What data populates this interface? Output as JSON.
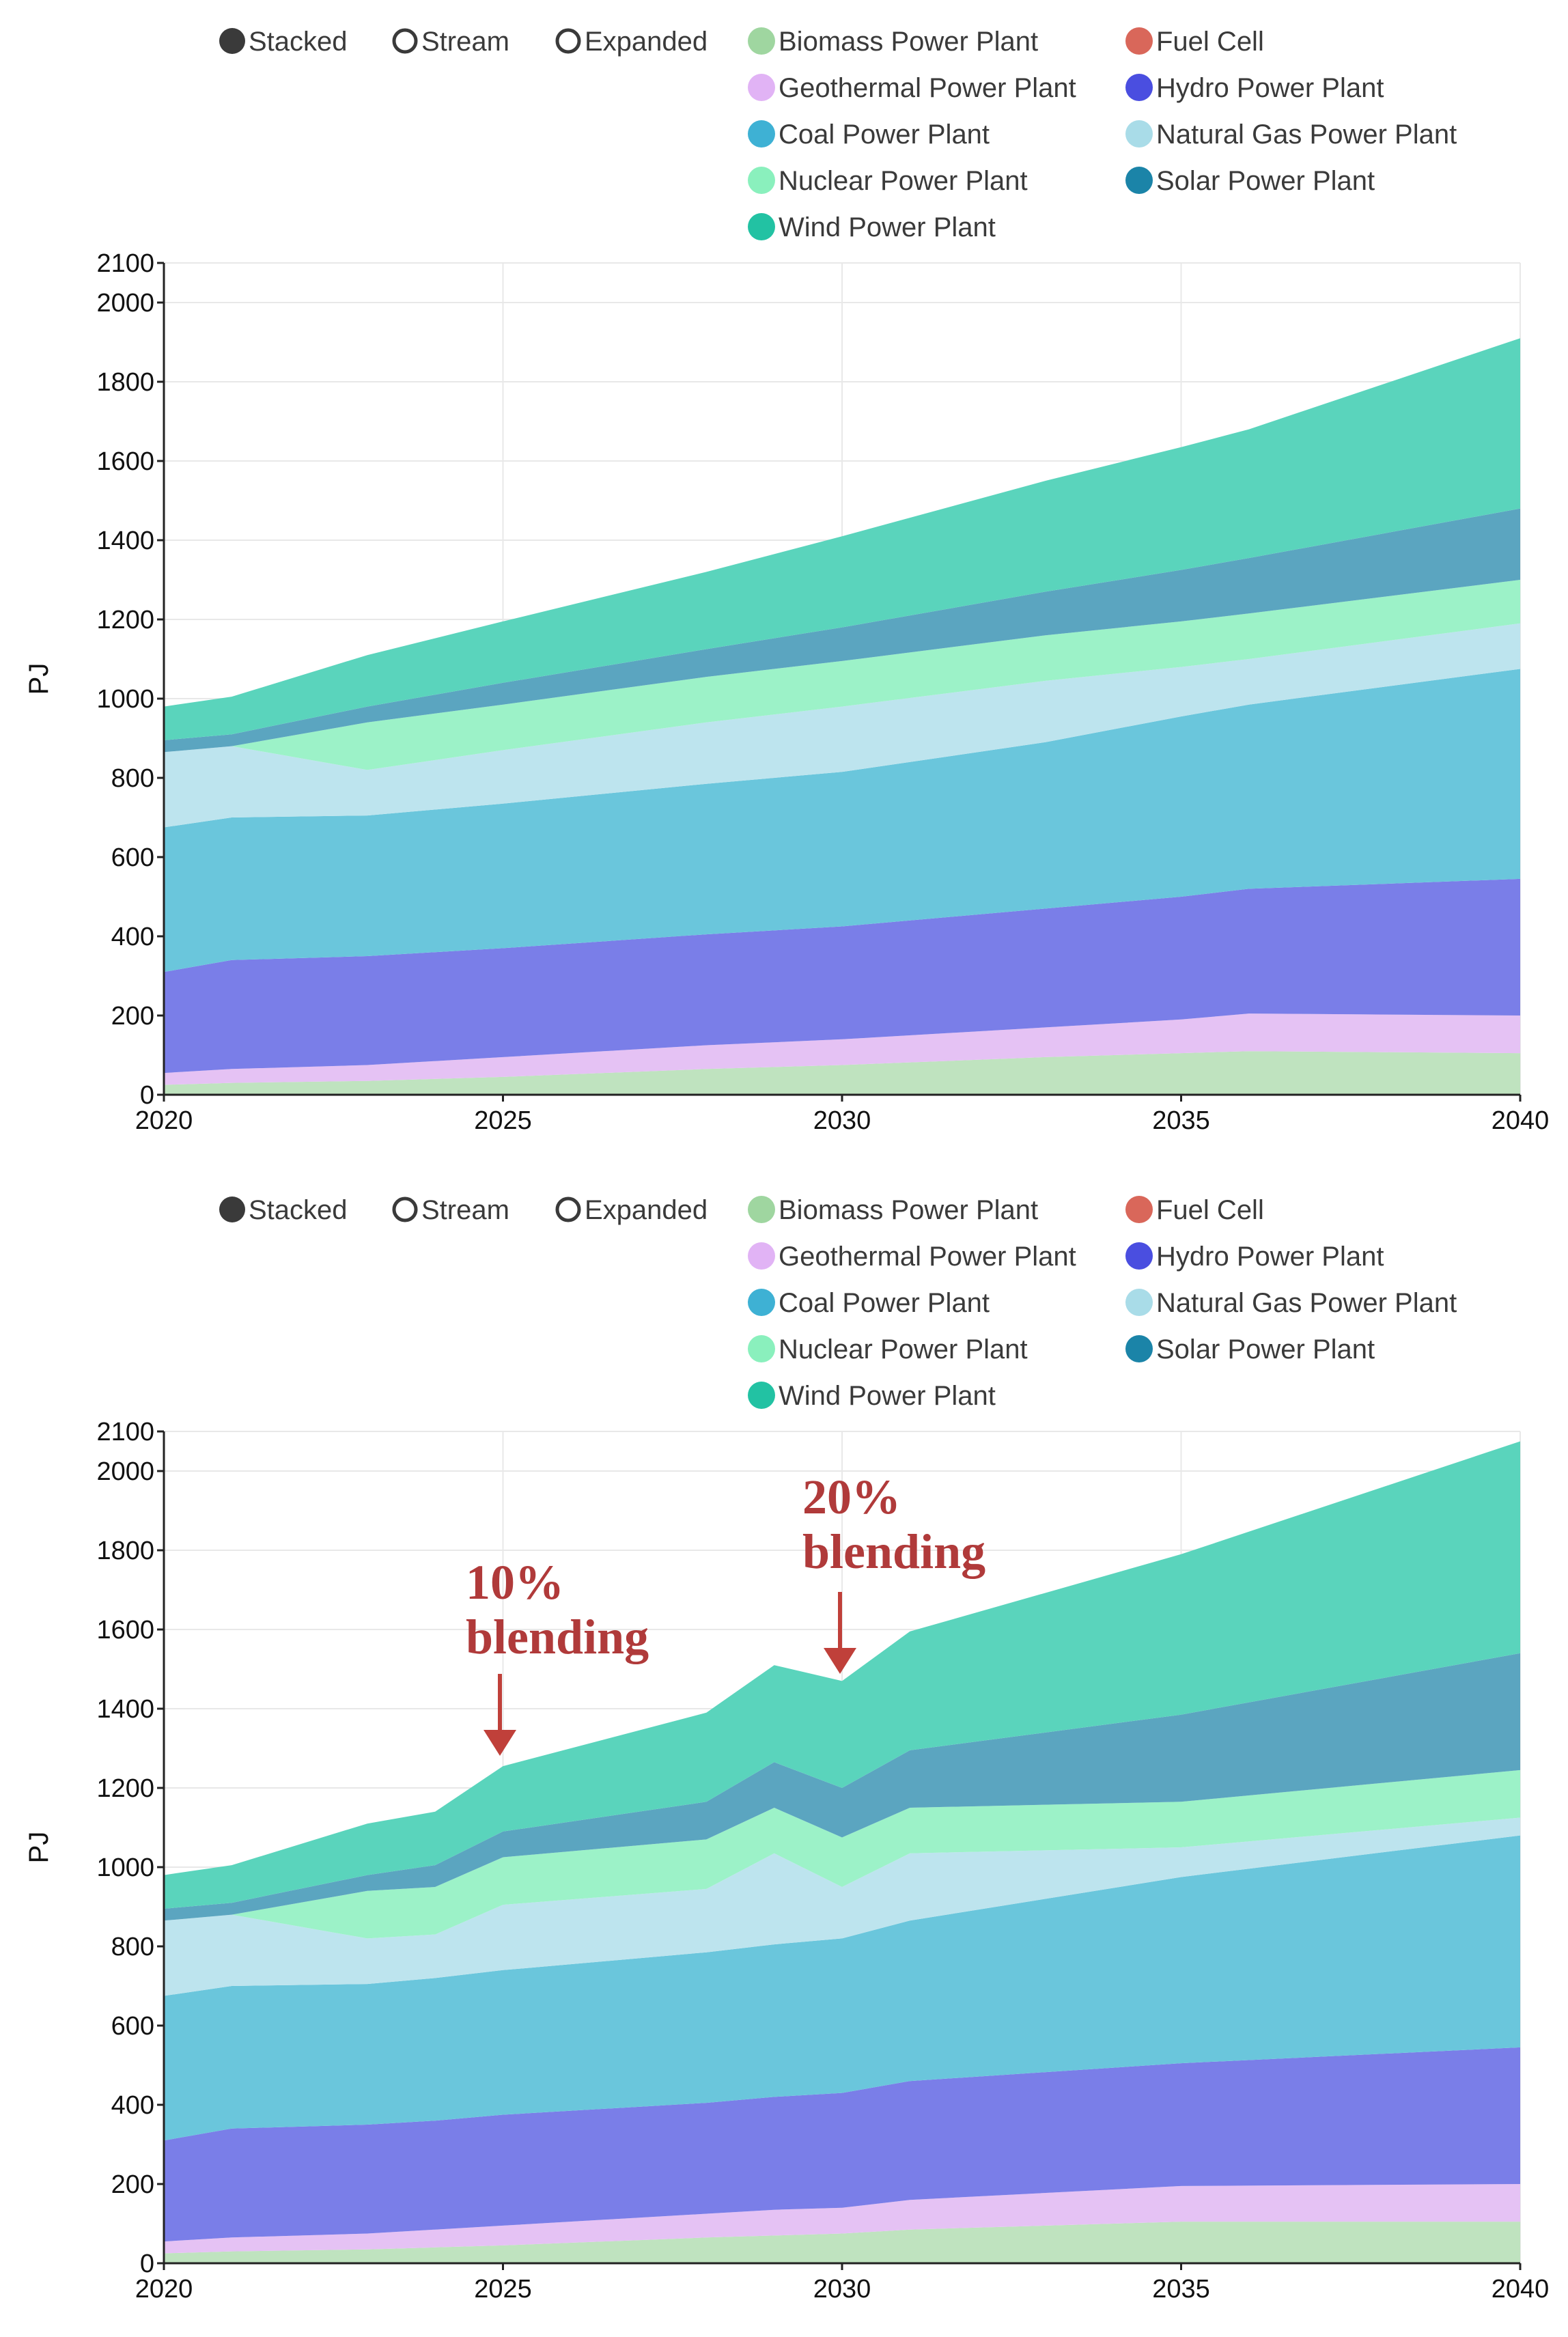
{
  "legend": {
    "modes": [
      {
        "label": "Stacked",
        "selected": true
      },
      {
        "label": "Stream",
        "selected": false
      },
      {
        "label": "Expanded",
        "selected": false
      }
    ],
    "series_rows": [
      [
        "Biomass Power Plant",
        "Fuel Cell"
      ],
      [
        "Geothermal Power Plant",
        "Hydro Power Plant"
      ],
      [
        "Coal Power Plant",
        "Natural Gas Power Plant"
      ],
      [
        "Nuclear Power Plant",
        "Solar Power Plant"
      ],
      [
        "Wind Power Plant"
      ]
    ]
  },
  "colors": {
    "Biomass Power Plant": "#bfe3bf",
    "Fuel Cell": "#dc7b6c",
    "Geothermal Power Plant": "#e5c2f4",
    "Hydro Power Plant": "#7a7ee8",
    "Coal Power Plant": "#6ac6dc",
    "Natural Gas Power Plant": "#bde4ee",
    "Nuclear Power Plant": "#9cf2c8",
    "Solar Power Plant": "#5ba5c0",
    "Wind Power Plant": "#5ad4bc"
  },
  "legend_colors": {
    "Biomass Power Plant": "#9fd6a0",
    "Fuel Cell": "#d9675a",
    "Geothermal Power Plant": "#e1b3f5",
    "Hydro Power Plant": "#4a4ee0",
    "Coal Power Plant": "#3eb1d4",
    "Natural Gas Power Plant": "#a9dce8",
    "Nuclear Power Plant": "#8af0bd",
    "Solar Power Plant": "#1b84a8",
    "Wind Power Plant": "#22c2a3"
  },
  "chart_data": [
    {
      "type": "area",
      "stacked": true,
      "ylabel": "PJ",
      "ylim": [
        0,
        2100
      ],
      "y_ticks": [
        0,
        200,
        400,
        600,
        800,
        1000,
        1200,
        1400,
        1600,
        1800,
        2000,
        2100
      ],
      "xlim": [
        2020,
        2040
      ],
      "x_ticks": [
        2020,
        2025,
        2030,
        2035,
        2040
      ],
      "grid": true,
      "legend_position": "top",
      "x": [
        2020,
        2021,
        2023,
        2025,
        2028,
        2030,
        2033,
        2035,
        2036,
        2040
      ],
      "series": [
        {
          "name": "Biomass Power Plant",
          "values": [
            25,
            30,
            35,
            45,
            65,
            75,
            95,
            105,
            110,
            105
          ]
        },
        {
          "name": "Geothermal Power Plant",
          "values": [
            30,
            35,
            40,
            50,
            60,
            65,
            75,
            85,
            95,
            95
          ]
        },
        {
          "name": "Hydro Power Plant",
          "values": [
            255,
            275,
            275,
            275,
            280,
            285,
            300,
            310,
            315,
            345
          ]
        },
        {
          "name": "Coal Power Plant",
          "values": [
            365,
            360,
            355,
            365,
            380,
            390,
            420,
            455,
            465,
            530
          ]
        },
        {
          "name": "Natural Gas Power Plant",
          "values": [
            190,
            180,
            115,
            135,
            155,
            165,
            155,
            125,
            115,
            115
          ]
        },
        {
          "name": "Nuclear Power Plant",
          "values": [
            0,
            0,
            120,
            115,
            115,
            115,
            115,
            115,
            115,
            110
          ]
        },
        {
          "name": "Solar Power Plant",
          "values": [
            30,
            30,
            40,
            55,
            70,
            85,
            110,
            130,
            140,
            180
          ]
        },
        {
          "name": "Fuel Cell",
          "values": [
            0,
            0,
            0,
            0,
            0,
            0,
            0,
            0,
            0,
            0
          ]
        },
        {
          "name": "Wind Power Plant",
          "values": [
            85,
            95,
            130,
            155,
            195,
            230,
            280,
            310,
            325,
            430
          ]
        }
      ]
    },
    {
      "type": "area",
      "stacked": true,
      "ylabel": "PJ",
      "ylim": [
        0,
        2100
      ],
      "y_ticks": [
        0,
        200,
        400,
        600,
        800,
        1000,
        1200,
        1400,
        1600,
        1800,
        2000,
        2100
      ],
      "xlim": [
        2020,
        2040
      ],
      "x_ticks": [
        2020,
        2025,
        2030,
        2035,
        2040
      ],
      "grid": true,
      "legend_position": "top",
      "x": [
        2020,
        2021,
        2023,
        2024,
        2025,
        2028,
        2029,
        2030,
        2031,
        2035,
        2040
      ],
      "series": [
        {
          "name": "Biomass Power Plant",
          "values": [
            25,
            30,
            35,
            40,
            45,
            65,
            70,
            75,
            85,
            105,
            105
          ]
        },
        {
          "name": "Geothermal Power Plant",
          "values": [
            30,
            35,
            40,
            45,
            50,
            60,
            65,
            65,
            75,
            90,
            95
          ]
        },
        {
          "name": "Hydro Power Plant",
          "values": [
            255,
            275,
            275,
            275,
            280,
            280,
            285,
            290,
            300,
            310,
            345
          ]
        },
        {
          "name": "Coal Power Plant",
          "values": [
            365,
            360,
            355,
            360,
            365,
            380,
            385,
            390,
            405,
            470,
            535
          ]
        },
        {
          "name": "Natural Gas Power Plant",
          "values": [
            190,
            180,
            115,
            110,
            165,
            160,
            230,
            130,
            170,
            75,
            45
          ]
        },
        {
          "name": "Nuclear Power Plant",
          "values": [
            0,
            0,
            120,
            120,
            120,
            125,
            115,
            125,
            115,
            115,
            120
          ]
        },
        {
          "name": "Solar Power Plant",
          "values": [
            30,
            30,
            40,
            55,
            65,
            95,
            115,
            125,
            145,
            220,
            295
          ]
        },
        {
          "name": "Fuel Cell",
          "values": [
            0,
            0,
            0,
            0,
            0,
            0,
            0,
            0,
            0,
            0,
            0
          ]
        },
        {
          "name": "Wind Power Plant",
          "values": [
            85,
            95,
            130,
            135,
            165,
            225,
            245,
            270,
            300,
            405,
            535
          ]
        }
      ],
      "annotations": [
        {
          "text_lines": [
            "10%",
            "blending"
          ],
          "x": 2025
        },
        {
          "text_lines": [
            "20%",
            "blending"
          ],
          "x": 2030
        }
      ]
    }
  ]
}
